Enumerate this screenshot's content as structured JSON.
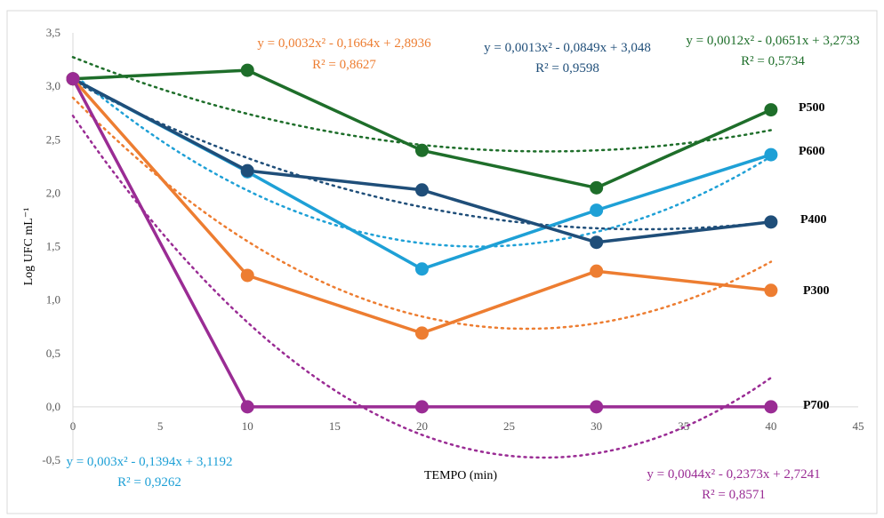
{
  "chart_data": {
    "type": "line",
    "title": "",
    "xlabel": "TEMPO (min)",
    "ylabel": "Log UFC mL⁻¹",
    "xlim": [
      0,
      45
    ],
    "ylim": [
      -0.5,
      3.5
    ],
    "x_ticks": [
      "0",
      "5",
      "10",
      "15",
      "20",
      "25",
      "30",
      "35",
      "40",
      "45"
    ],
    "y_ticks": [
      "-0,5",
      "0,0",
      "0,5",
      "1,0",
      "1,5",
      "2,0",
      "2,5",
      "3,0",
      "3,5"
    ],
    "grid": false,
    "legend": "none",
    "x": [
      0,
      10,
      20,
      30,
      40
    ],
    "series": [
      {
        "name": "P500",
        "color": "#1e6e2a",
        "values": [
          3.07,
          3.15,
          2.4,
          2.05,
          2.78
        ],
        "trend": {
          "a": 0.0012,
          "b": -0.0651,
          "c": 3.2733
        },
        "equation": "y = 0,0012x² - 0,0651x + 3,2733",
        "r2": "R² = 0,5734"
      },
      {
        "name": "P600",
        "color": "#1ea0d6",
        "values": [
          3.07,
          2.2,
          1.29,
          1.84,
          2.36
        ],
        "trend": {
          "a": 0.003,
          "b": -0.1394,
          "c": 3.1192
        },
        "equation": "y = 0,003x² - 0,1394x + 3,1192",
        "r2": "R² = 0,9262"
      },
      {
        "name": "P400",
        "color": "#1f4e79",
        "values": [
          3.07,
          2.21,
          2.03,
          1.54,
          1.73
        ],
        "trend": {
          "a": 0.0013,
          "b": -0.0849,
          "c": 3.048
        },
        "equation": "y = 0,0013x² - 0,0849x + 3,048",
        "r2": "R² = 0,9598"
      },
      {
        "name": "P300",
        "color": "#ed7d31",
        "values": [
          3.07,
          1.23,
          0.69,
          1.27,
          1.09
        ],
        "trend": {
          "a": 0.0032,
          "b": -0.1664,
          "c": 2.8936
        },
        "equation": "y = 0,0032x² - 0,1664x + 2,8936",
        "r2": "R² = 0,8627"
      },
      {
        "name": "P700",
        "color": "#9a2c94",
        "values": [
          3.07,
          0.0,
          0.0,
          0.0,
          0.0
        ],
        "trend": {
          "a": 0.0044,
          "b": -0.2373,
          "c": 2.7241
        },
        "equation": "y = 0,0044x² - 0,2373x + 2,7241",
        "r2": "R² = 0,8571"
      }
    ]
  }
}
